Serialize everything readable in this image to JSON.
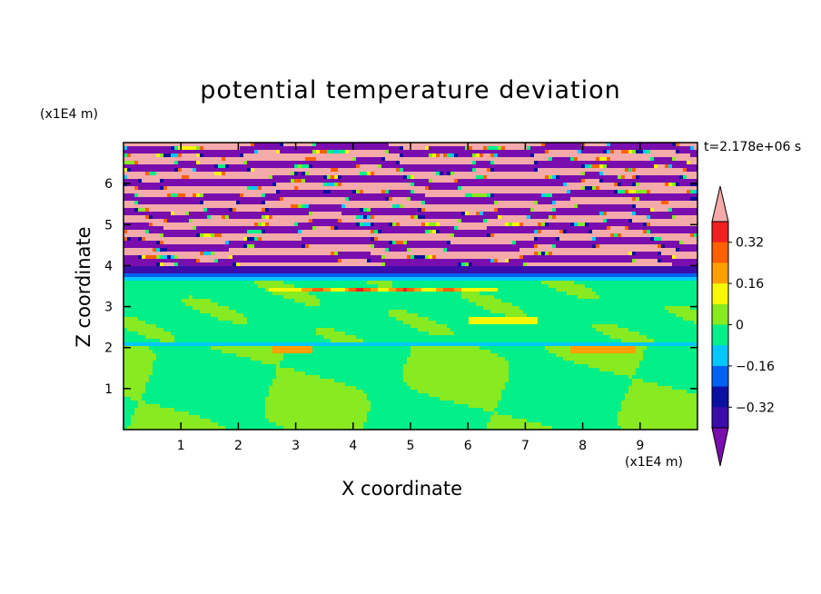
{
  "chart_data": {
    "type": "heatmap",
    "title": "potential temperature deviation",
    "xlabel": "X coordinate",
    "ylabel": "Z coordinate",
    "x_unit_label": "(x1E4 m)",
    "y_unit_label": "(x1E4 m)",
    "time_label": "t=2.178e+06 s",
    "xlim": [
      0,
      10
    ],
    "ylim": [
      0,
      7
    ],
    "x_ticks": [
      "1",
      "2",
      "3",
      "4",
      "5",
      "6",
      "7",
      "8",
      "9"
    ],
    "x_tick_values": [
      1,
      2,
      3,
      4,
      5,
      6,
      7,
      8,
      9
    ],
    "y_ticks": [
      "1",
      "2",
      "3",
      "4",
      "5",
      "6"
    ],
    "y_tick_values": [
      1,
      2,
      3,
      4,
      5,
      6
    ],
    "colorbar": {
      "levels": [
        -0.48,
        -0.4,
        -0.32,
        -0.24,
        -0.16,
        -0.08,
        0,
        0.08,
        0.16,
        0.24,
        0.32,
        0.4,
        0.48
      ],
      "tick_labels": [
        "0.32",
        "0.16",
        "0",
        "−0.16",
        "−0.32"
      ],
      "tick_values": [
        0.32,
        0.16,
        0,
        -0.16,
        -0.32
      ],
      "extend": "both",
      "colors": [
        "#7a0dae",
        "#3c0da8",
        "#0a10a0",
        "#0060f0",
        "#00c8ff",
        "#00ef88",
        "#88ea20",
        "#f8f800",
        "#ffa000",
        "#ff6000",
        "#f02020",
        "#f4aaaa"
      ]
    },
    "bands": [
      {
        "z0": 0.0,
        "z1": 2.05,
        "value": 0.02,
        "note": "green/light-green mix"
      },
      {
        "z0": 2.05,
        "z1": 2.1,
        "value": -0.1
      },
      {
        "z0": 2.1,
        "z1": 3.6,
        "value": 0.0
      },
      {
        "z0": 3.6,
        "z1": 3.75,
        "value": -0.12
      },
      {
        "z0": 3.75,
        "z1": 3.85,
        "value": -0.2
      },
      {
        "z0": 3.85,
        "z1": 4.0,
        "value": -0.36
      },
      {
        "z0": 4.0,
        "z1": 7.0,
        "value": "alternating -0.5 / 0.5"
      }
    ],
    "grid": false
  }
}
